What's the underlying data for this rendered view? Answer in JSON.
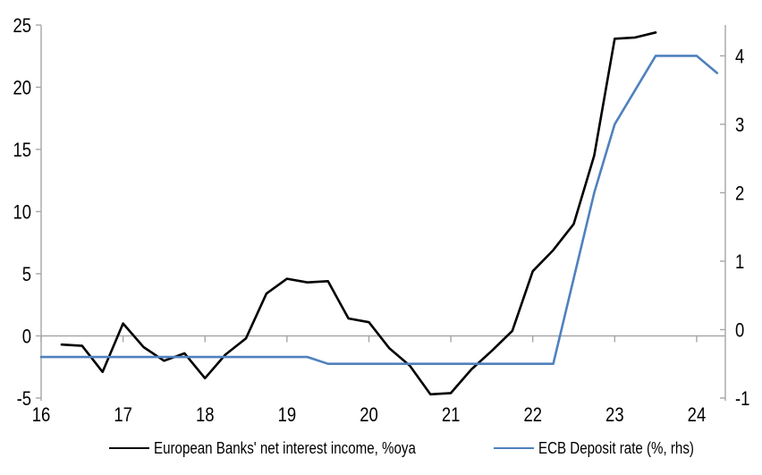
{
  "chart_data": {
    "type": "line",
    "title": "",
    "x_axis": {
      "tick_values": [
        16,
        17,
        18,
        19,
        20,
        21,
        22,
        23,
        24
      ],
      "tick_labels": [
        "16",
        "17",
        "18",
        "19",
        "20",
        "21",
        "22",
        "23",
        "24"
      ],
      "range": [
        16,
        24.35
      ],
      "grid": false
    },
    "left_axis": {
      "tick_values": [
        -5,
        0,
        5,
        10,
        15,
        20,
        25
      ],
      "tick_labels": [
        "-5",
        "0",
        "5",
        "10",
        "15",
        "20",
        "25"
      ],
      "range": [
        -5,
        25
      ]
    },
    "right_axis": {
      "tick_values": [
        -1,
        0,
        1,
        2,
        3,
        4
      ],
      "tick_labels": [
        "-1",
        "0",
        "1",
        "2",
        "3",
        "4"
      ],
      "range": [
        -1,
        4.45
      ]
    },
    "zero_gridline": true,
    "legend_position": "bottom",
    "axis_color": "#a6a6a6",
    "text_color": "#000000",
    "series": [
      {
        "name": "European Banks' net interest income, %oya",
        "axis": "left",
        "color": "#000000",
        "x": [
          16.25,
          16.5,
          16.75,
          17.0,
          17.25,
          17.5,
          17.75,
          18.0,
          18.25,
          18.5,
          18.75,
          19.0,
          19.25,
          19.5,
          19.75,
          20.0,
          20.25,
          20.5,
          20.75,
          21.0,
          21.25,
          21.5,
          21.75,
          22.0,
          22.25,
          22.5,
          22.75,
          23.0,
          23.25,
          23.5
        ],
        "values": [
          -0.7,
          -0.8,
          -2.9,
          1.0,
          -0.9,
          -2.0,
          -1.4,
          -3.4,
          -1.5,
          -0.2,
          3.4,
          4.6,
          4.3,
          4.4,
          1.4,
          1.1,
          -1.0,
          -2.4,
          -4.7,
          -4.6,
          -2.7,
          -1.2,
          0.4,
          5.2,
          6.9,
          9.0,
          14.5,
          23.9,
          24.0,
          24.4
        ]
      },
      {
        "name": "ECB Deposit rate (%, rhs)",
        "axis": "right",
        "color": "#4f81bd",
        "x": [
          16.0,
          16.25,
          16.5,
          16.75,
          17.0,
          17.25,
          17.5,
          17.75,
          18.0,
          18.25,
          18.5,
          18.75,
          19.0,
          19.25,
          19.5,
          19.75,
          20.0,
          20.25,
          20.5,
          20.75,
          21.0,
          21.25,
          21.5,
          21.75,
          22.0,
          22.25,
          22.5,
          22.75,
          23.0,
          23.25,
          23.5,
          23.75,
          24.0,
          24.25
        ],
        "values": [
          -0.4,
          -0.4,
          -0.4,
          -0.4,
          -0.4,
          -0.4,
          -0.4,
          -0.4,
          -0.4,
          -0.4,
          -0.4,
          -0.4,
          -0.4,
          -0.4,
          -0.5,
          -0.5,
          -0.5,
          -0.5,
          -0.5,
          -0.5,
          -0.5,
          -0.5,
          -0.5,
          -0.5,
          -0.5,
          -0.5,
          0.75,
          2.0,
          3.0,
          3.5,
          4.0,
          4.0,
          4.0,
          3.75
        ]
      }
    ]
  }
}
